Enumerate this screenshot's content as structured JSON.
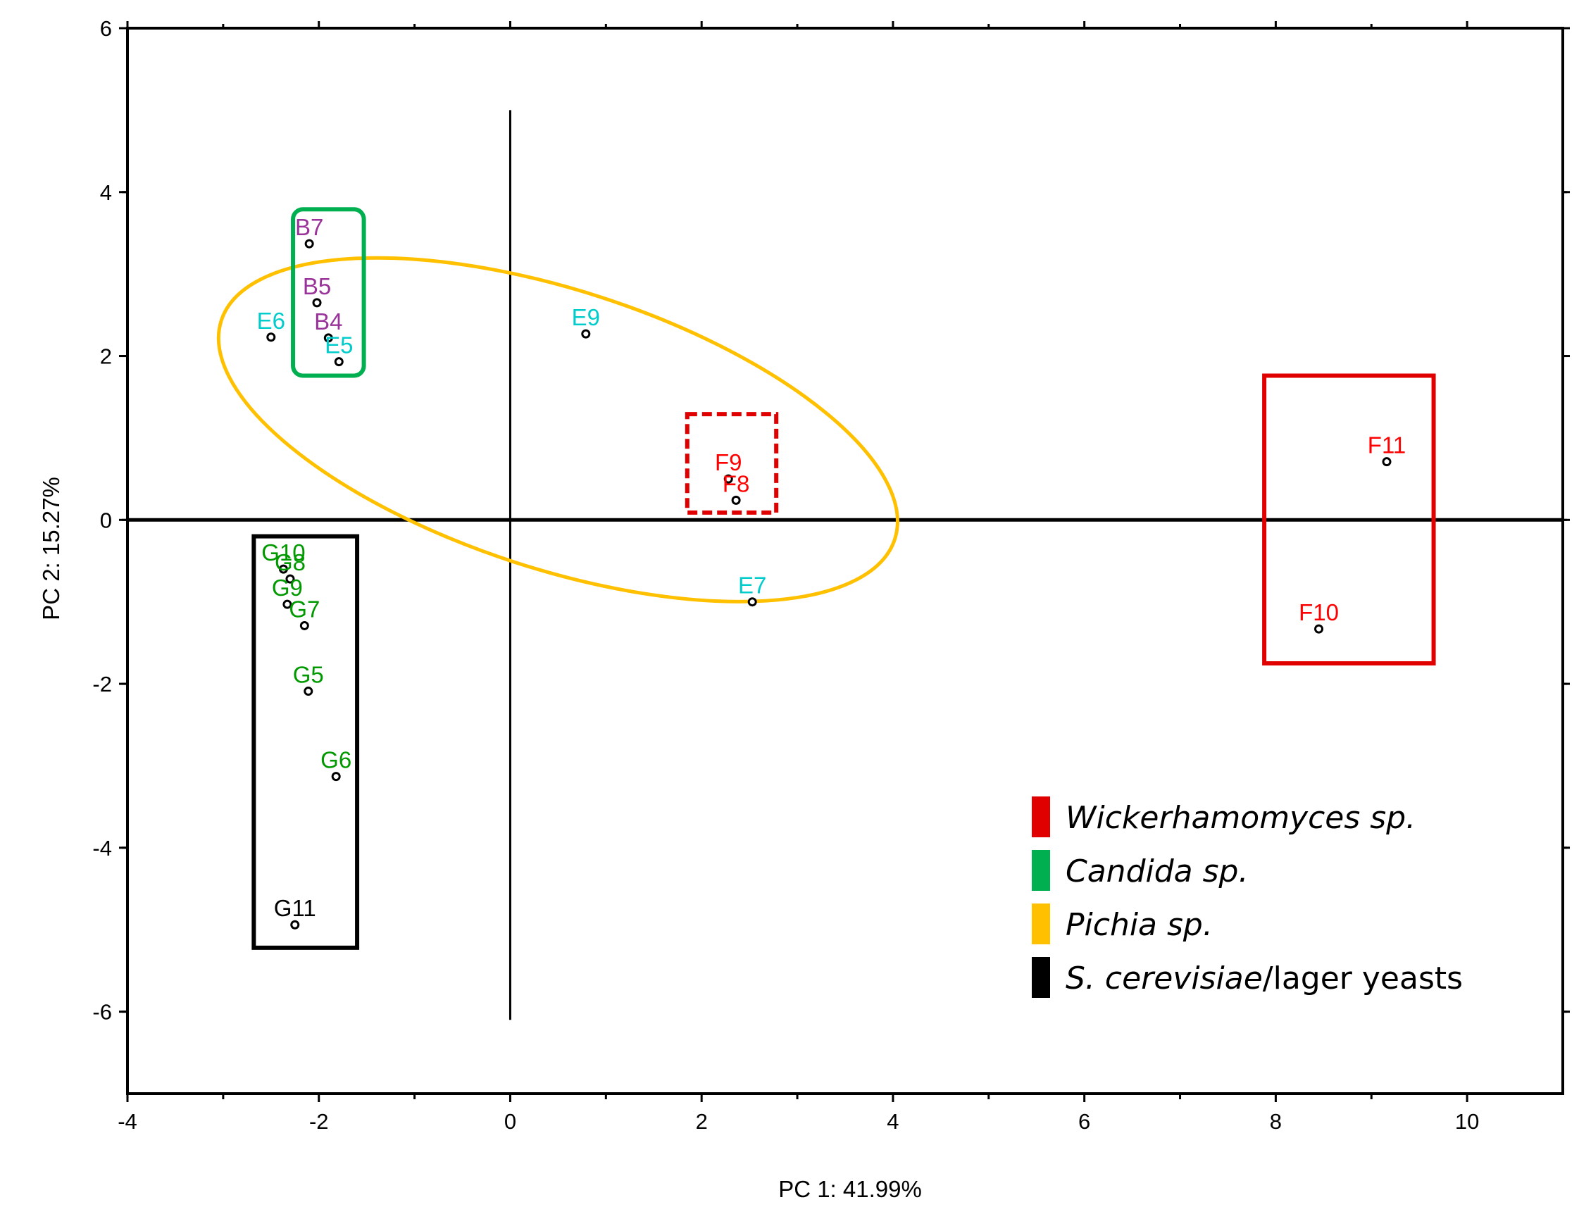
{
  "chart_data": {
    "type": "scatter",
    "title": "",
    "xlabel": "PC 1: 41.99%",
    "ylabel": "PC 2: 15.27%",
    "xlim": [
      -4,
      11
    ],
    "ylim": [
      -7,
      6
    ],
    "xticks": [
      -4,
      -2,
      0,
      2,
      4,
      6,
      8,
      10
    ],
    "yticks": [
      6,
      4,
      2,
      0,
      -2,
      -4,
      -6
    ],
    "xtick_labels": [
      "-4",
      "-2",
      "0",
      "2",
      "4",
      "6",
      "8",
      "10"
    ],
    "ytick_labels": [
      "6",
      "4",
      "2",
      "0",
      "-2",
      "-4",
      "-6"
    ],
    "grid": false,
    "points": [
      {
        "label": "B7",
        "x": -2.1,
        "y": 3.37,
        "color": "#993399"
      },
      {
        "label": "B5",
        "x": -2.02,
        "y": 2.65,
        "color": "#993399"
      },
      {
        "label": "B4",
        "x": -1.9,
        "y": 2.22,
        "color": "#993399"
      },
      {
        "label": "E6",
        "x": -2.5,
        "y": 2.23,
        "color": "#00cccc"
      },
      {
        "label": "E5",
        "x": -1.79,
        "y": 1.93,
        "color": "#00cccc"
      },
      {
        "label": "E9",
        "x": 0.79,
        "y": 2.27,
        "color": "#00cccc"
      },
      {
        "label": "E7",
        "x": 2.53,
        "y": -1.0,
        "color": "#00cccc"
      },
      {
        "label": "F9",
        "x": 2.28,
        "y": 0.5,
        "color": "#ff0000"
      },
      {
        "label": "F8",
        "x": 2.36,
        "y": 0.24,
        "color": "#ff0000"
      },
      {
        "label": "F11",
        "x": 9.16,
        "y": 0.71,
        "color": "#ff0000"
      },
      {
        "label": "F10",
        "x": 8.45,
        "y": -1.33,
        "color": "#ff0000"
      },
      {
        "label": "G10",
        "x": -2.37,
        "y": -0.6,
        "color": "#009900"
      },
      {
        "label": "G8",
        "x": -2.3,
        "y": -0.72,
        "color": "#009900"
      },
      {
        "label": "G9",
        "x": -2.33,
        "y": -1.03,
        "color": "#009900"
      },
      {
        "label": "G7",
        "x": -2.15,
        "y": -1.29,
        "color": "#009900"
      },
      {
        "label": "G5",
        "x": -2.11,
        "y": -2.09,
        "color": "#009900"
      },
      {
        "label": "G6",
        "x": -1.82,
        "y": -3.13,
        "color": "#009900"
      },
      {
        "label": "G11",
        "x": -2.25,
        "y": -4.94,
        "color": "#000000"
      }
    ],
    "reference_lines": [
      {
        "orientation": "vertical",
        "x": 0,
        "y_from": -6.1,
        "y_to": 5.0
      },
      {
        "orientation": "horizontal",
        "y": 0
      }
    ],
    "annotations": [
      {
        "shape": "ellipse",
        "cx": 0.5,
        "cy": 1.1,
        "rx": 3.7,
        "ry": 1.7,
        "angle_deg": -18,
        "color": "#ffc000"
      },
      {
        "shape": "rect",
        "x0": -2.27,
        "x1": -1.53,
        "y0": 1.76,
        "y1": 3.79,
        "color": "#00b050",
        "rounded": true
      },
      {
        "shape": "rect",
        "x0": -2.68,
        "x1": -1.6,
        "y0": -5.22,
        "y1": -0.2,
        "color": "#000000"
      },
      {
        "shape": "rect",
        "x0": 1.85,
        "x1": 2.78,
        "y0": 0.09,
        "y1": 1.29,
        "color": "#e00000",
        "dashed": true
      },
      {
        "shape": "rect",
        "x0": 7.88,
        "x1": 9.65,
        "y0": -1.75,
        "y1": 1.76,
        "color": "#e00000"
      }
    ],
    "legend": {
      "position": "bottom-right",
      "entries": [
        {
          "swatch_color": "#e00000",
          "italic": "Wickerhamomyces sp.",
          "normal": ""
        },
        {
          "swatch_color": "#00b050",
          "italic": "Candida sp.",
          "normal": ""
        },
        {
          "swatch_color": "#ffc000",
          "italic": "Pichia sp.",
          "normal": ""
        },
        {
          "swatch_color": "#000000",
          "italic": "S. cerevisiae",
          "normal": "/lager yeasts"
        }
      ]
    }
  }
}
